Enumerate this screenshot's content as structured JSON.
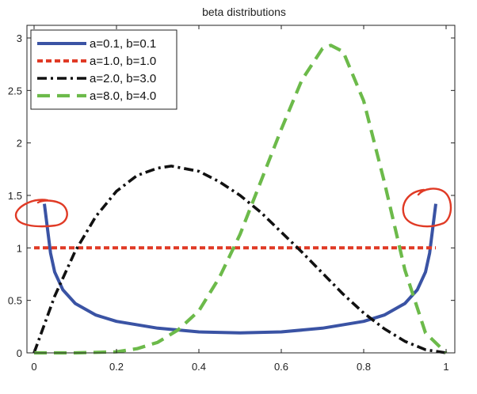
{
  "chart_data": {
    "type": "line",
    "title": "beta distributions",
    "xlabel": "",
    "ylabel": "",
    "xlim": [
      0,
      1
    ],
    "ylim": [
      0,
      3
    ],
    "x_ticks": [
      0,
      0.2,
      0.4,
      0.6,
      0.8,
      1
    ],
    "y_ticks": [
      0,
      0.5,
      1,
      1.5,
      2,
      2.5,
      3
    ],
    "legend_position": "top-left",
    "grid": false,
    "series": [
      {
        "name": "a=0.1, b=0.1",
        "color": "#3a53a4",
        "style": "solid",
        "x": [
          0.025,
          0.04,
          0.05,
          0.07,
          0.1,
          0.15,
          0.2,
          0.3,
          0.4,
          0.5,
          0.6,
          0.7,
          0.8,
          0.85,
          0.9,
          0.93,
          0.95,
          0.96,
          0.975
        ],
        "y": [
          1.42,
          0.95,
          0.77,
          0.6,
          0.47,
          0.36,
          0.3,
          0.235,
          0.2,
          0.19,
          0.2,
          0.235,
          0.3,
          0.36,
          0.47,
          0.6,
          0.77,
          0.95,
          1.42
        ]
      },
      {
        "name": "a=1.0, b=1.0",
        "color": "#e03a25",
        "style": "dotted",
        "x": [
          0.0,
          0.975
        ],
        "y": [
          1.0,
          1.0
        ]
      },
      {
        "name": "a=2.0, b=3.0",
        "color": "#111111",
        "style": "dashdot",
        "x": [
          0,
          0.05,
          0.1,
          0.15,
          0.2,
          0.25,
          0.3,
          0.333,
          0.4,
          0.45,
          0.5,
          0.55,
          0.6,
          0.65,
          0.7,
          0.75,
          0.8,
          0.85,
          0.9,
          0.95,
          1.0
        ],
        "y": [
          0,
          0.54,
          0.97,
          1.3,
          1.54,
          1.69,
          1.76,
          1.78,
          1.73,
          1.63,
          1.5,
          1.34,
          1.15,
          0.96,
          0.76,
          0.56,
          0.38,
          0.23,
          0.11,
          0.03,
          0
        ]
      },
      {
        "name": "a=8.0, b=4.0",
        "color": "#6cba4a",
        "style": "dashed",
        "x": [
          0,
          0.1,
          0.2,
          0.25,
          0.3,
          0.35,
          0.4,
          0.45,
          0.5,
          0.55,
          0.6,
          0.65,
          0.7,
          0.72,
          0.75,
          0.8,
          0.85,
          0.9,
          0.95,
          1.0
        ],
        "y": [
          0,
          0.0,
          0.01,
          0.04,
          0.1,
          0.22,
          0.4,
          0.72,
          1.13,
          1.63,
          2.13,
          2.6,
          2.9,
          2.93,
          2.87,
          2.4,
          1.63,
          0.79,
          0.19,
          0
        ]
      }
    ]
  }
}
